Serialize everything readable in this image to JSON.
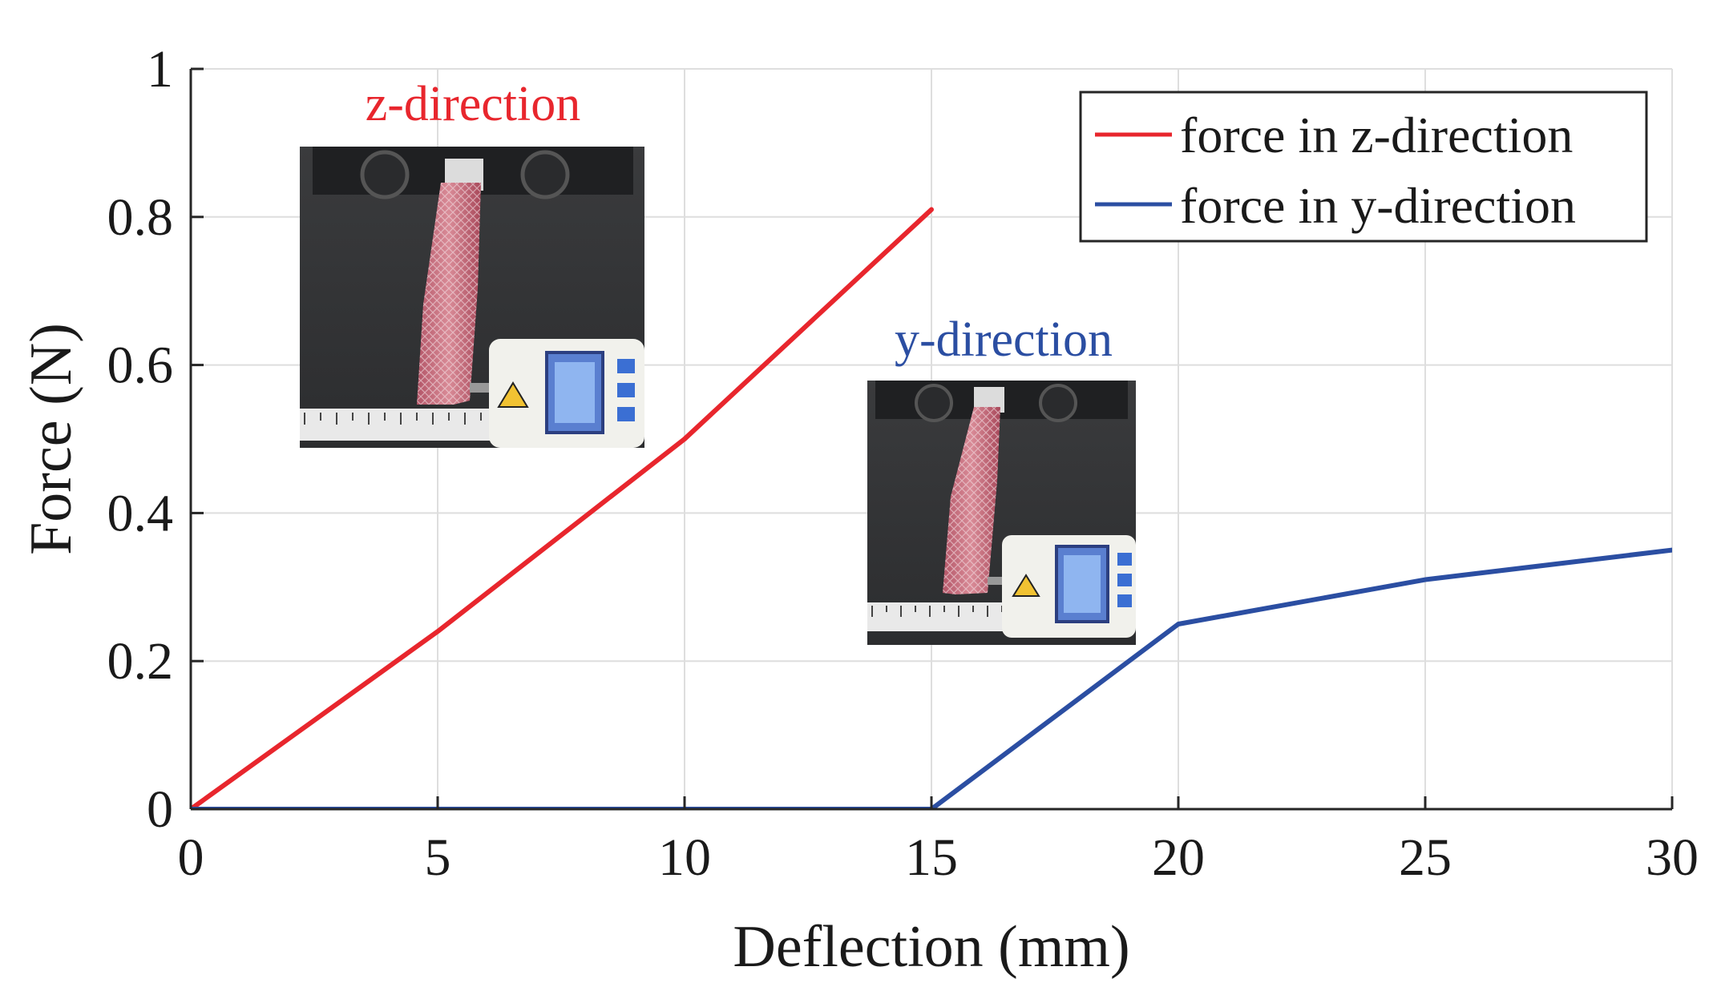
{
  "chart_data": {
    "type": "line",
    "xlabel": "Deflection (mm)",
    "ylabel": "Force (N)",
    "xlim": [
      0,
      30
    ],
    "ylim": [
      0,
      1
    ],
    "xticks": [
      0,
      5,
      10,
      15,
      20,
      25,
      30
    ],
    "yticks": [
      0,
      0.2,
      0.4,
      0.6,
      0.8,
      1
    ],
    "ytick_labels": [
      "0",
      "0.2",
      "0.4",
      "0.6",
      "0.8",
      "1"
    ],
    "grid": true,
    "legend_position": "top-right",
    "series": [
      {
        "name": "force in z-direction",
        "color": "#e8262d",
        "x": [
          0,
          5,
          10,
          15
        ],
        "y": [
          0,
          0.24,
          0.5,
          0.81
        ]
      },
      {
        "name": "force in y-direction",
        "color": "#2b4ea2",
        "x": [
          0,
          5,
          10,
          15,
          20,
          25,
          30
        ],
        "y": [
          0,
          0,
          0,
          0,
          0.25,
          0.31,
          0.35
        ]
      }
    ],
    "annotations": [
      {
        "text": "z-direction",
        "color": "#e8262d"
      },
      {
        "text": "y-direction",
        "color": "#2b4ea2"
      }
    ],
    "insets": [
      {
        "name": "z-direction-photo",
        "depicts": "z-direction test setup photo"
      },
      {
        "name": "y-direction-photo",
        "depicts": "y-direction test setup photo"
      }
    ]
  }
}
